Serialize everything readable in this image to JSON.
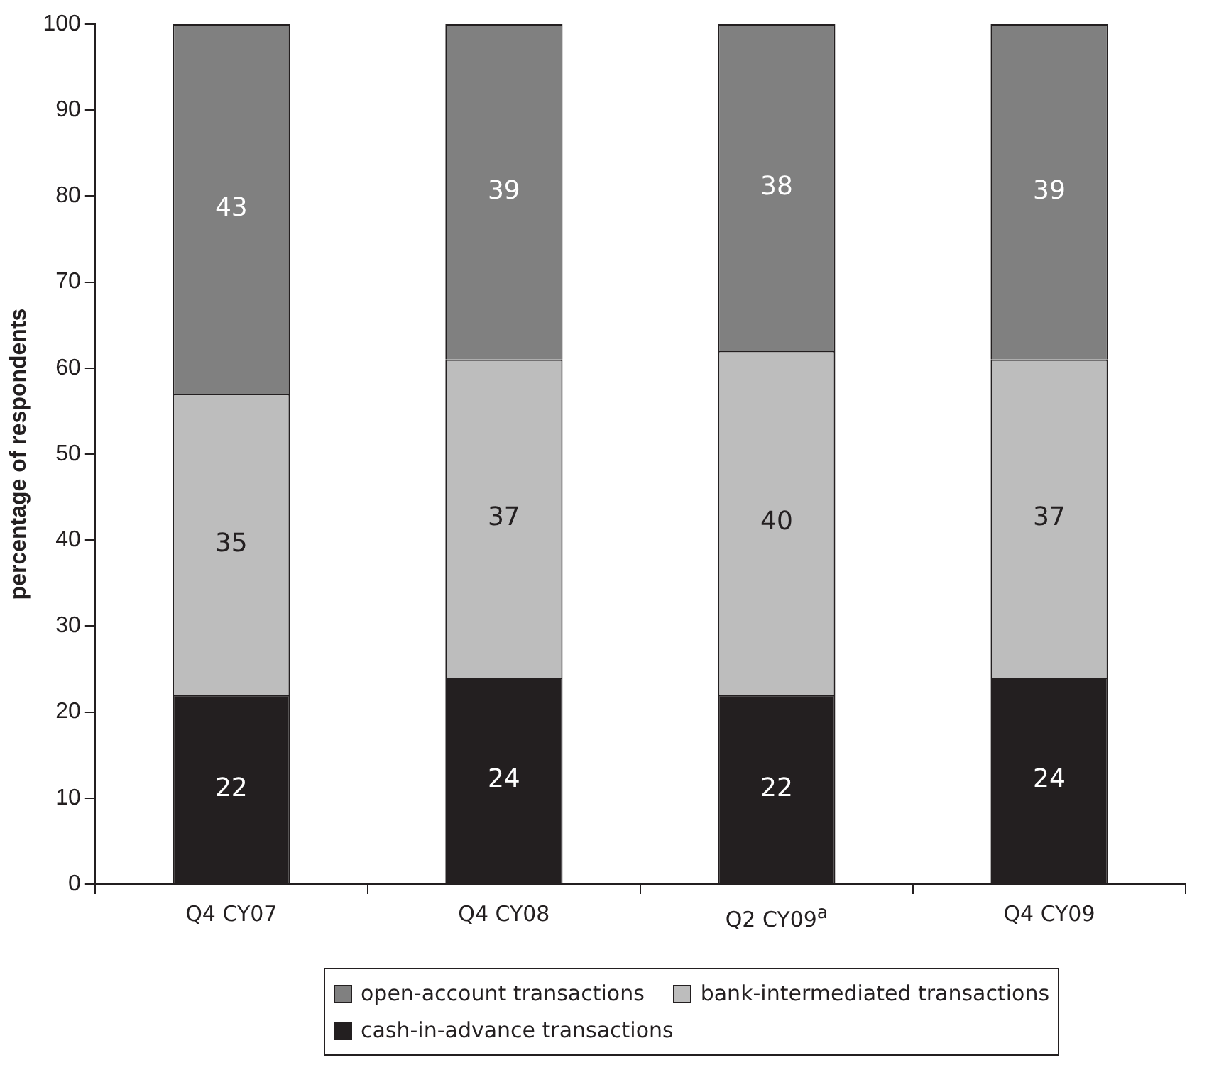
{
  "chart_data": {
    "type": "bar",
    "stacked": true,
    "ylabel": "percentage of respondents",
    "categories": [
      "Q4 CY07",
      "Q4 CY08",
      "Q2 CY09$^{a}$",
      "Q4 CY09"
    ],
    "series": [
      {
        "name": "cash-in-advance transactions",
        "color": "#231f20",
        "values": [
          22,
          24,
          22,
          24
        ]
      },
      {
        "name": "bank-intermediated transactions",
        "color": "#bdbdbd",
        "values": [
          35,
          37,
          40,
          37
        ]
      },
      {
        "name": "open-account transactions",
        "color": "#808080",
        "values": [
          43,
          39,
          38,
          39
        ]
      }
    ],
    "ylim": [
      0,
      100
    ],
    "yticks": [
      0,
      10,
      20,
      30,
      40,
      50,
      60,
      70,
      80,
      90,
      100
    ],
    "grid": false,
    "legend": "bottom",
    "data_labels": true
  }
}
